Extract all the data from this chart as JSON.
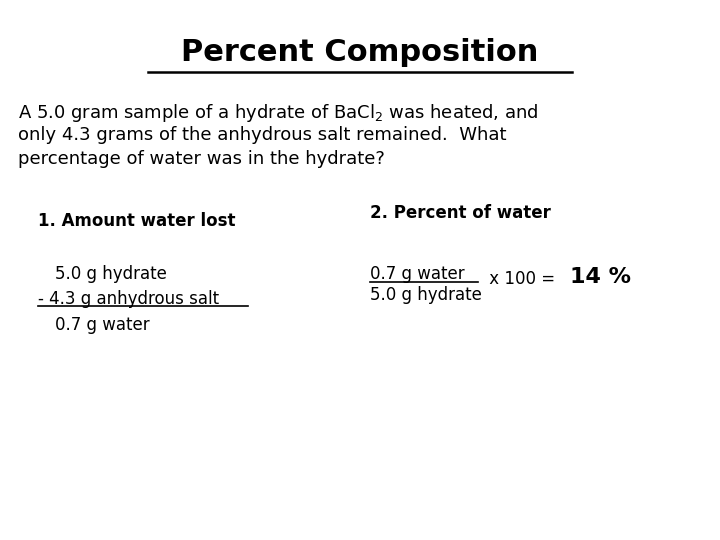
{
  "title": "Percent Composition",
  "background_color": "#ffffff",
  "text_color": "#000000",
  "title_fontsize": 22,
  "body_fontsize": 13,
  "label_fontsize": 12,
  "small_fontsize": 12,
  "large_fontsize": 16,
  "section1_label": "1. Amount water lost",
  "section2_label": "2. Percent of water",
  "frac_num": "0.7 g water",
  "frac_den": "5.0 g hydrate",
  "result": "14 %"
}
